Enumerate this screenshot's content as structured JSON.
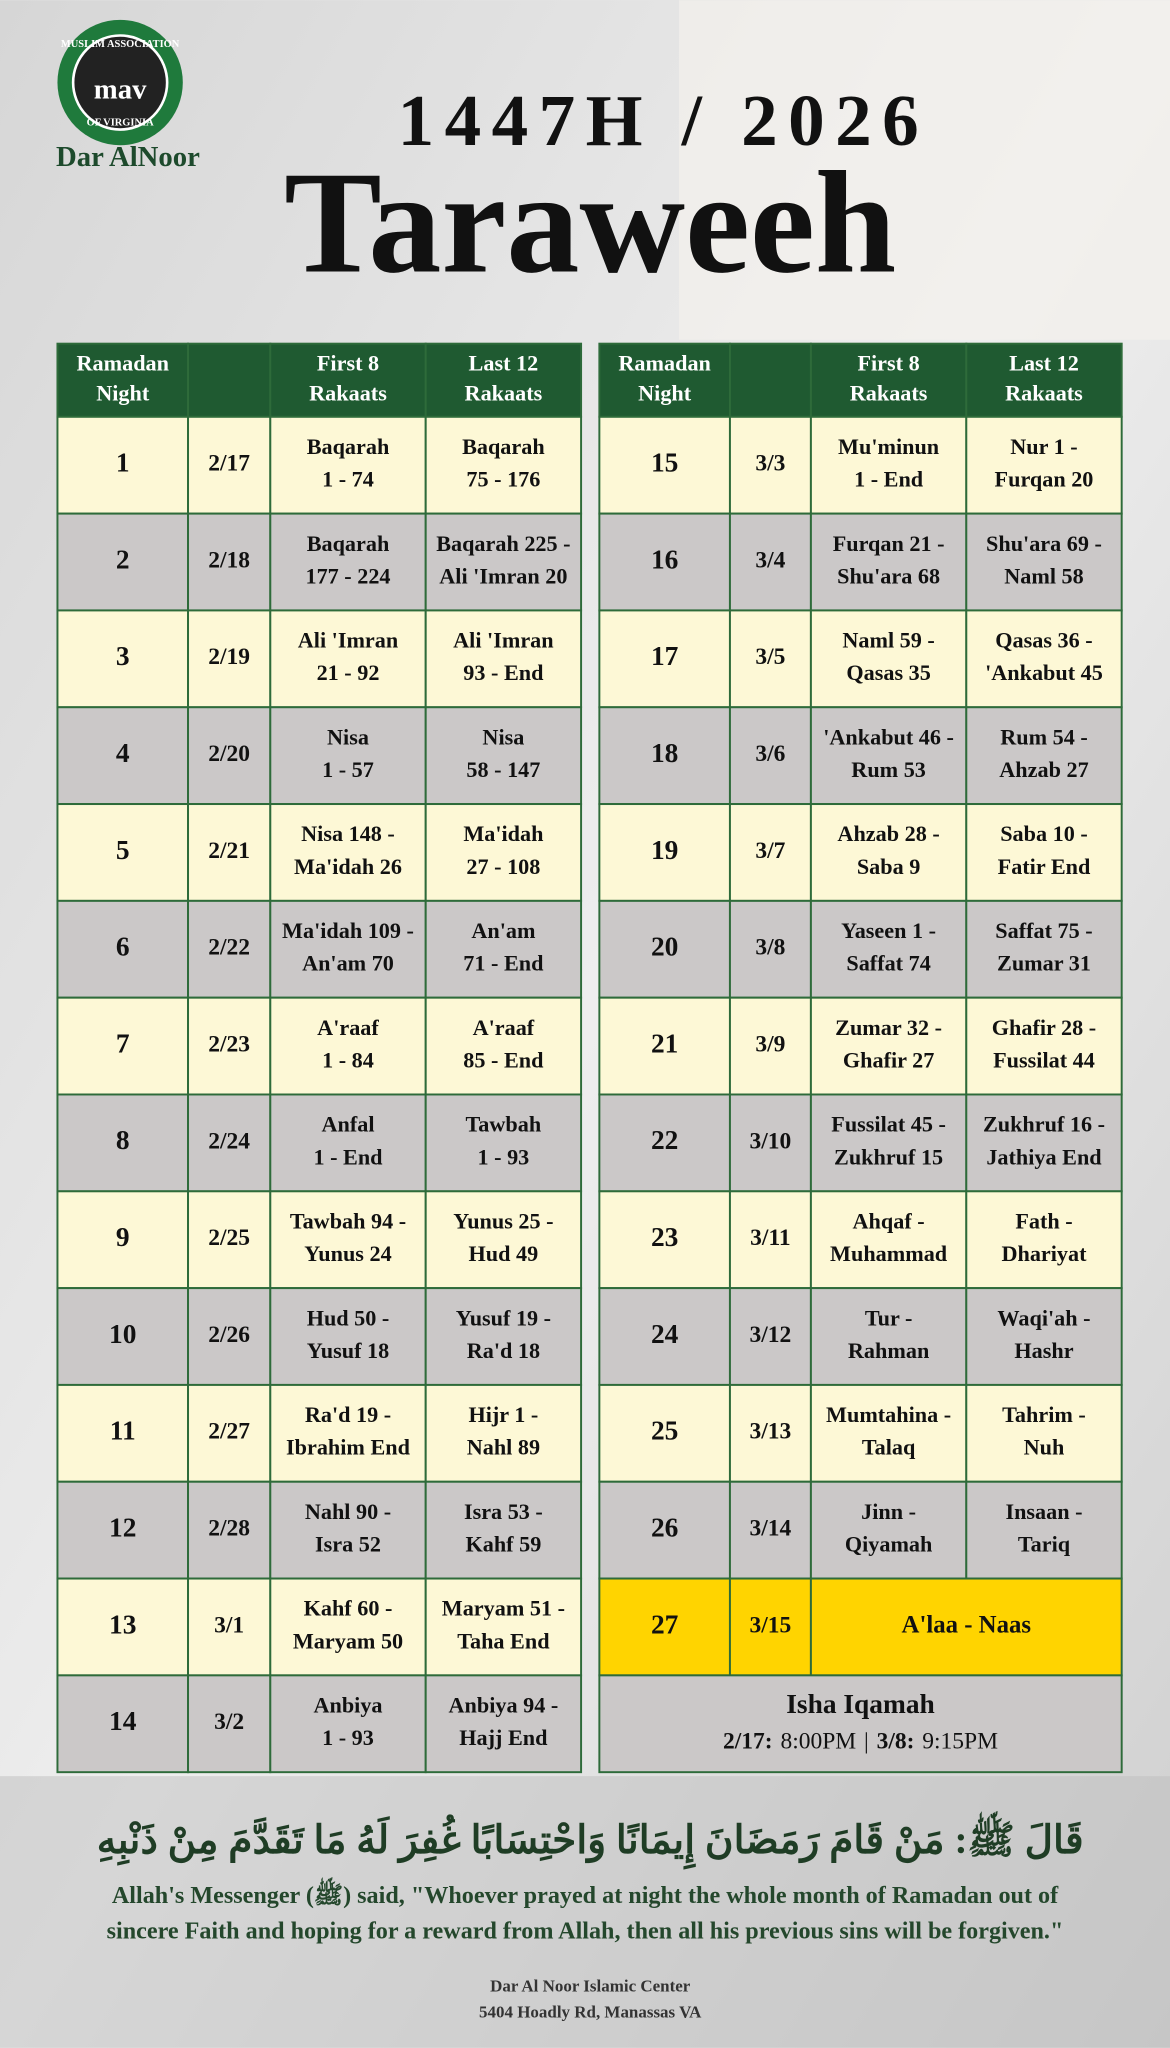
{
  "logo": {
    "ring_top": "MUSLIM ASSOCIATION",
    "ring_bottom": "OF VIRGINIA",
    "mark": "mav",
    "name": "Dar AlNoor"
  },
  "header": {
    "year": "1447H / 2026",
    "title": "Taraweeh"
  },
  "tables": {
    "columns": [
      [
        "Ramadan",
        "Night"
      ],
      [
        "First 8",
        "Rakaats"
      ],
      [
        "Last 12",
        "Rakaats"
      ]
    ],
    "left": [
      {
        "night": 1,
        "date": "2/17",
        "first": [
          "Baqarah",
          "1 - 74"
        ],
        "last": [
          "Baqarah",
          "75 - 176"
        ]
      },
      {
        "night": 2,
        "date": "2/18",
        "first": [
          "Baqarah",
          "177 - 224"
        ],
        "last": [
          "Baqarah 225 -",
          "Ali 'Imran 20"
        ]
      },
      {
        "night": 3,
        "date": "2/19",
        "first": [
          "Ali 'Imran",
          "21 - 92"
        ],
        "last": [
          "Ali 'Imran",
          "93 - End"
        ]
      },
      {
        "night": 4,
        "date": "2/20",
        "first": [
          "Nisa",
          "1 - 57"
        ],
        "last": [
          "Nisa",
          "58 - 147"
        ]
      },
      {
        "night": 5,
        "date": "2/21",
        "first": [
          "Nisa 148 -",
          "Ma'idah 26"
        ],
        "last": [
          "Ma'idah",
          "27 - 108"
        ]
      },
      {
        "night": 6,
        "date": "2/22",
        "first": [
          "Ma'idah 109 -",
          "An'am 70"
        ],
        "last": [
          "An'am",
          "71 - End"
        ]
      },
      {
        "night": 7,
        "date": "2/23",
        "first": [
          "A'raaf",
          "1 - 84"
        ],
        "last": [
          "A'raaf",
          "85 - End"
        ]
      },
      {
        "night": 8,
        "date": "2/24",
        "first": [
          "Anfal",
          "1 - End"
        ],
        "last": [
          "Tawbah",
          "1 - 93"
        ]
      },
      {
        "night": 9,
        "date": "2/25",
        "first": [
          "Tawbah 94 -",
          "Yunus 24"
        ],
        "last": [
          "Yunus 25 -",
          "Hud 49"
        ]
      },
      {
        "night": 10,
        "date": "2/26",
        "first": [
          "Hud 50 -",
          "Yusuf 18"
        ],
        "last": [
          "Yusuf 19 -",
          "Ra'd 18"
        ]
      },
      {
        "night": 11,
        "date": "2/27",
        "first": [
          "Ra'd 19 -",
          "Ibrahim End"
        ],
        "last": [
          "Hijr 1 -",
          "Nahl 89"
        ]
      },
      {
        "night": 12,
        "date": "2/28",
        "first": [
          "Nahl 90 -",
          "Isra 52"
        ],
        "last": [
          "Isra 53 -",
          "Kahf 59"
        ]
      },
      {
        "night": 13,
        "date": "3/1",
        "first": [
          "Kahf 60 -",
          "Maryam 50"
        ],
        "last": [
          "Maryam 51 -",
          "Taha End"
        ]
      },
      {
        "night": 14,
        "date": "3/2",
        "first": [
          "Anbiya",
          "1 - 93"
        ],
        "last": [
          "Anbiya 94 -",
          "Hajj End"
        ]
      }
    ],
    "right": [
      {
        "night": 15,
        "date": "3/3",
        "first": [
          "Mu'minun",
          "1 - End"
        ],
        "last": [
          "Nur 1 -",
          "Furqan 20"
        ]
      },
      {
        "night": 16,
        "date": "3/4",
        "first": [
          "Furqan 21 -",
          "Shu'ara 68"
        ],
        "last": [
          "Shu'ara 69 -",
          "Naml 58"
        ]
      },
      {
        "night": 17,
        "date": "3/5",
        "first": [
          "Naml 59 -",
          "Qasas 35"
        ],
        "last": [
          "Qasas 36 -",
          "'Ankabut 45"
        ]
      },
      {
        "night": 18,
        "date": "3/6",
        "first": [
          "'Ankabut 46 -",
          "Rum 53"
        ],
        "last": [
          "Rum 54 -",
          "Ahzab 27"
        ]
      },
      {
        "night": 19,
        "date": "3/7",
        "first": [
          "Ahzab 28 -",
          "Saba 9"
        ],
        "last": [
          "Saba 10 -",
          "Fatir End"
        ]
      },
      {
        "night": 20,
        "date": "3/8",
        "first": [
          "Yaseen 1 -",
          "Saffat 74"
        ],
        "last": [
          "Saffat 75 -",
          "Zumar 31"
        ]
      },
      {
        "night": 21,
        "date": "3/9",
        "first": [
          "Zumar 32 -",
          "Ghafir 27"
        ],
        "last": [
          "Ghafir 28 -",
          "Fussilat 44"
        ]
      },
      {
        "night": 22,
        "date": "3/10",
        "first": [
          "Fussilat 45 -",
          "Zukhruf 15"
        ],
        "last": [
          "Zukhruf 16 -",
          "Jathiya End"
        ]
      },
      {
        "night": 23,
        "date": "3/11",
        "first": [
          "Ahqaf -",
          "Muhammad"
        ],
        "last": [
          "Fath -",
          "Dhariyat"
        ]
      },
      {
        "night": 24,
        "date": "3/12",
        "first": [
          "Tur -",
          "Rahman"
        ],
        "last": [
          "Waqi'ah -",
          "Hashr"
        ]
      },
      {
        "night": 25,
        "date": "3/13",
        "first": [
          "Mumtahina -",
          "Talaq"
        ],
        "last": [
          "Tahrim -",
          "Nuh"
        ]
      },
      {
        "night": 26,
        "date": "3/14",
        "first": [
          "Jinn -",
          "Qiyamah"
        ],
        "last": [
          "Insaan -",
          "Tariq"
        ]
      }
    ],
    "final": {
      "night": 27,
      "date": "3/15",
      "reading": "A'laa - Naas"
    },
    "isha": {
      "title": "Isha Iqamah",
      "first_date": "2/17:",
      "first_time": "8:00PM",
      "separator": "|",
      "second_date": "3/8:",
      "second_time": "9:15PM"
    }
  },
  "hadith": {
    "arabic": "قَالَ ﷺ: مَنْ قَامَ رَمَضَانَ إِيمَانًا وَاحْتِسَابًا غُفِرَ لَهُ مَا تَقَدَّمَ مِنْ ذَنْبِهِ",
    "english": [
      "Allah's Messenger (ﷺ) said, \"Whoever prayed at night the whole month of Ramadan out of",
      "sincere Faith and hoping for a reward from Allah, then all his previous sins will be forgiven.\""
    ]
  },
  "footer": [
    "Dar Al Noor Islamic Center",
    "5404 Hoadly Rd, Manassas VA"
  ]
}
